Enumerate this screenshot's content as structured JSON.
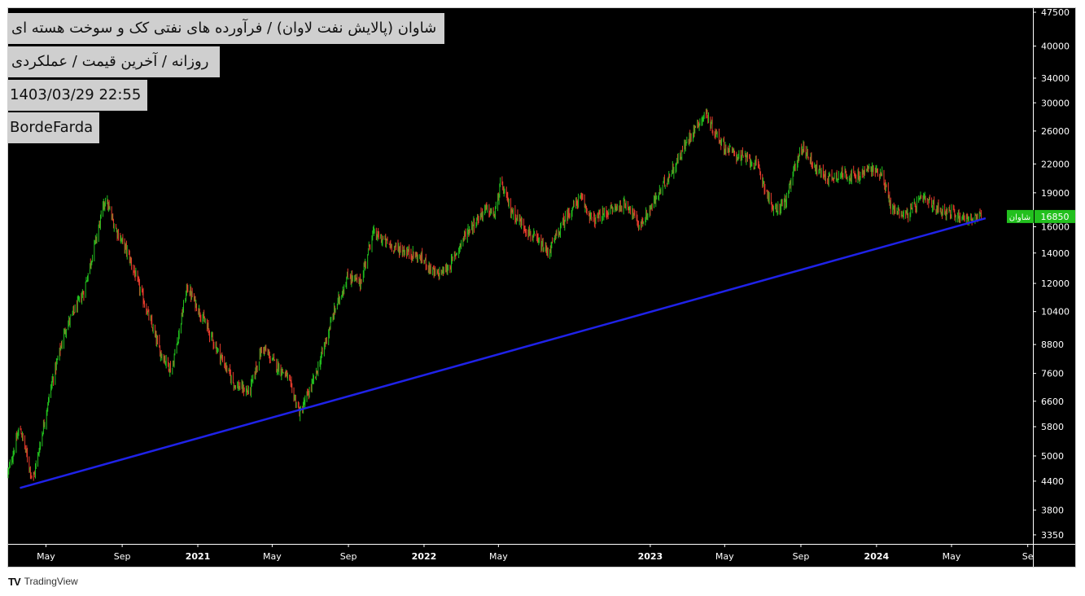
{
  "info": {
    "title": "شاوان (پالایش نفت لاوان) / فرآورده های نفتی کک و سوخت هسته ای",
    "subtitle": "روزانه / آخرین قیمت / عملکردی",
    "datetime": "1403/03/29 22:55",
    "brand": "BordeFarda"
  },
  "footer": {
    "logo_mark": "TV",
    "logo_text": "TradingView"
  },
  "colors": {
    "background": "#000000",
    "up": "#22c01e",
    "down": "#e53b2c",
    "trendline": "#1f22e8",
    "price_label_bg": "#22c01e",
    "axis_text": "#ffffff"
  },
  "chart_data": {
    "type": "candlestick",
    "symbol": "شاوان",
    "last_price": 16850,
    "last_price_label": "16850",
    "y_scale": "log",
    "ylim": [
      3200,
      48500
    ],
    "y_ticks": [
      {
        "value": 47500,
        "label": "47500"
      },
      {
        "value": 40000,
        "label": "40000"
      },
      {
        "value": 34000,
        "label": "34000"
      },
      {
        "value": 30000,
        "label": "30000"
      },
      {
        "value": 26000,
        "label": "26000"
      },
      {
        "value": 22000,
        "label": "22000"
      },
      {
        "value": 19000,
        "label": "19000"
      },
      {
        "value": 16000,
        "label": "16000"
      },
      {
        "value": 14000,
        "label": "14000"
      },
      {
        "value": 12000,
        "label": "12000"
      },
      {
        "value": 10400,
        "label": "10400"
      },
      {
        "value": 8800,
        "label": "8800"
      },
      {
        "value": 7600,
        "label": "7600"
      },
      {
        "value": 6600,
        "label": "6600"
      },
      {
        "value": 5800,
        "label": "5800"
      },
      {
        "value": 5000,
        "label": "5000"
      },
      {
        "value": 4400,
        "label": "4400"
      },
      {
        "value": 3800,
        "label": "3800"
      },
      {
        "value": 3350,
        "label": "3350"
      }
    ],
    "xlim": [
      "2020-03-01",
      "2024-09-08"
    ],
    "x_ticks": [
      {
        "date": "2020-05-01",
        "label": "May",
        "bold": false
      },
      {
        "date": "2020-09-01",
        "label": "Sep",
        "bold": false
      },
      {
        "date": "2021-01-01",
        "label": "2021",
        "bold": true
      },
      {
        "date": "2021-05-01",
        "label": "May",
        "bold": false
      },
      {
        "date": "2021-09-01",
        "label": "Sep",
        "bold": false
      },
      {
        "date": "2022-01-01",
        "label": "2022",
        "bold": true
      },
      {
        "date": "2022-05-01",
        "label": "May",
        "bold": false
      },
      {
        "date": "2023-01-01",
        "label": "2023",
        "bold": true
      },
      {
        "date": "2023-05-01",
        "label": "May",
        "bold": false
      },
      {
        "date": "2023-09-01",
        "label": "Sep",
        "bold": false
      },
      {
        "date": "2024-01-01",
        "label": "2024",
        "bold": true
      },
      {
        "date": "2024-05-01",
        "label": "May",
        "bold": false
      },
      {
        "date": "2024-09-01",
        "label": "Se",
        "bold": false
      }
    ],
    "price_path": [
      [
        "2020-03-01",
        4600
      ],
      [
        "2020-03-20",
        5800
      ],
      [
        "2020-04-10",
        4400
      ],
      [
        "2020-05-10",
        7200
      ],
      [
        "2020-06-01",
        9500
      ],
      [
        "2020-07-01",
        11500
      ],
      [
        "2020-08-05",
        18500
      ],
      [
        "2020-08-20",
        16000
      ],
      [
        "2020-09-10",
        14000
      ],
      [
        "2020-10-01",
        11500
      ],
      [
        "2020-11-01",
        8500
      ],
      [
        "2020-11-20",
        7700
      ],
      [
        "2020-12-15",
        11800
      ],
      [
        "2021-01-10",
        10000
      ],
      [
        "2021-02-01",
        8600
      ],
      [
        "2021-03-01",
        7200
      ],
      [
        "2021-03-25",
        6900
      ],
      [
        "2021-04-15",
        8700
      ],
      [
        "2021-05-05",
        8000
      ],
      [
        "2021-05-25",
        7500
      ],
      [
        "2021-06-15",
        6200
      ],
      [
        "2021-07-10",
        7500
      ],
      [
        "2021-08-10",
        10500
      ],
      [
        "2021-09-01",
        12500
      ],
      [
        "2021-09-20",
        12000
      ],
      [
        "2021-10-10",
        15500
      ],
      [
        "2021-11-10",
        14500
      ],
      [
        "2021-12-10",
        14000
      ],
      [
        "2022-01-01",
        13500
      ],
      [
        "2022-01-20",
        12500
      ],
      [
        "2022-02-10",
        13000
      ],
      [
        "2022-03-10",
        15500
      ],
      [
        "2022-04-10",
        17500
      ],
      [
        "2022-04-25",
        17000
      ],
      [
        "2022-05-05",
        20000
      ],
      [
        "2022-05-20",
        17500
      ],
      [
        "2022-06-20",
        15500
      ],
      [
        "2022-07-20",
        14000
      ],
      [
        "2022-08-20",
        17000
      ],
      [
        "2022-09-10",
        18500
      ],
      [
        "2022-10-01",
        16500
      ],
      [
        "2022-11-01",
        17500
      ],
      [
        "2022-11-25",
        18000
      ],
      [
        "2022-12-15",
        16000
      ],
      [
        "2023-01-01",
        17500
      ],
      [
        "2023-01-20",
        19500
      ],
      [
        "2023-02-15",
        22500
      ],
      [
        "2023-03-10",
        26000
      ],
      [
        "2023-04-01",
        28500
      ],
      [
        "2023-04-10",
        26500
      ],
      [
        "2023-05-01",
        24000
      ],
      [
        "2023-05-20",
        23000
      ],
      [
        "2023-06-10",
        22500
      ],
      [
        "2023-06-25",
        21500
      ],
      [
        "2023-07-05",
        19500
      ],
      [
        "2023-07-20",
        17200
      ],
      [
        "2023-08-10",
        18500
      ],
      [
        "2023-08-25",
        22500
      ],
      [
        "2023-09-05",
        24000
      ],
      [
        "2023-09-25",
        21500
      ],
      [
        "2023-10-15",
        20500
      ],
      [
        "2023-11-10",
        21000
      ],
      [
        "2023-12-01",
        20500
      ],
      [
        "2023-12-20",
        21500
      ],
      [
        "2024-01-10",
        21000
      ],
      [
        "2024-01-25",
        17500
      ],
      [
        "2024-02-20",
        17000
      ],
      [
        "2024-03-15",
        18500
      ],
      [
        "2024-04-10",
        17500
      ],
      [
        "2024-05-10",
        17000
      ],
      [
        "2024-06-05",
        16600
      ],
      [
        "2024-06-18",
        16850
      ]
    ],
    "trendline": {
      "start": {
        "date": "2020-03-20",
        "price": 4250
      },
      "end": {
        "date": "2024-06-25",
        "price": 16700
      }
    }
  }
}
